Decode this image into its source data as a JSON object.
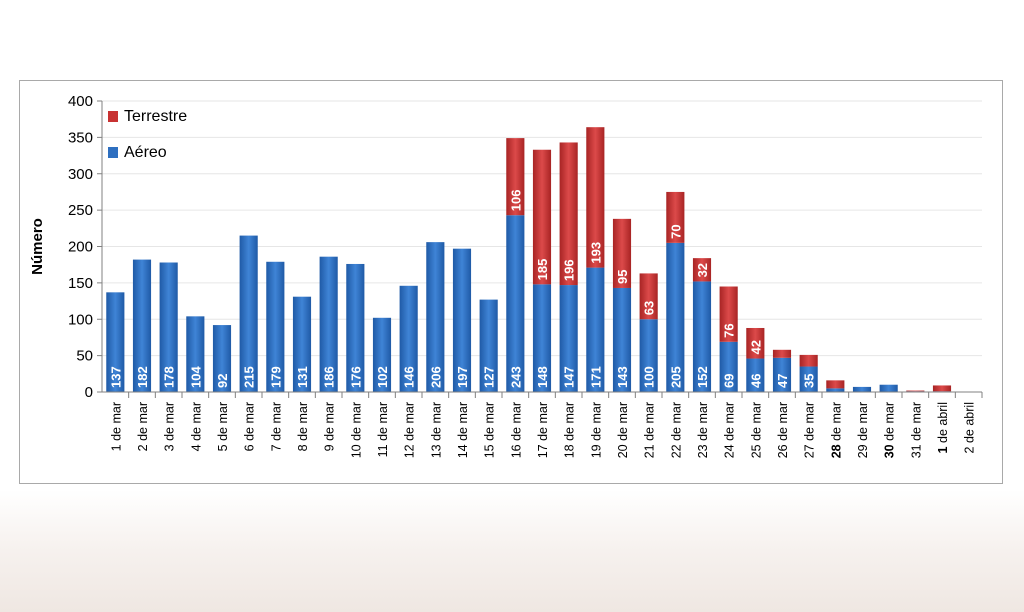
{
  "chart_data": {
    "type": "bar",
    "stacked": true,
    "ylabel": "Número",
    "ylim": [
      0,
      400
    ],
    "yticks": [
      0,
      50,
      100,
      150,
      200,
      250,
      300,
      350,
      400
    ],
    "categories": [
      "1 de mar",
      "2 de mar",
      "3 de mar",
      "4 de mar",
      "5 de mar",
      "6 de mar",
      "7 de mar",
      "8 de mar",
      "9 de mar",
      "10 de mar",
      "11 de mar",
      "12 de mar",
      "13 de mar",
      "14 de mar",
      "15 de mar",
      "16 de mar",
      "17 de mar",
      "18 de mar",
      "19 de mar",
      "20 de mar",
      "21 de mar",
      "22 de mar",
      "23 de mar",
      "24 de mar",
      "25 de mar",
      "26 de mar",
      "27 de mar",
      "28 de mar",
      "29 de mar",
      "30 de mar",
      "31 de mar",
      "1 de abril",
      "2 de abril"
    ],
    "bold_categories": [
      "28 de mar",
      "30 de mar",
      "1 de abril"
    ],
    "series": [
      {
        "name": "Aéreo",
        "color": "#2e6fc0",
        "values": [
          137,
          182,
          178,
          104,
          92,
          215,
          179,
          131,
          186,
          176,
          102,
          146,
          206,
          197,
          127,
          243,
          148,
          147,
          171,
          143,
          100,
          205,
          152,
          69,
          46,
          47,
          35,
          5,
          7,
          10,
          1,
          1,
          0
        ]
      },
      {
        "name": "Terrestre",
        "color": "#c83232",
        "values": [
          0,
          0,
          0,
          0,
          0,
          0,
          0,
          0,
          0,
          0,
          0,
          0,
          0,
          0,
          0,
          106,
          185,
          196,
          193,
          95,
          63,
          70,
          32,
          76,
          42,
          11,
          16,
          11,
          0,
          0,
          1,
          8,
          0
        ]
      }
    ],
    "legend_position": "top-left",
    "grid": true
  }
}
